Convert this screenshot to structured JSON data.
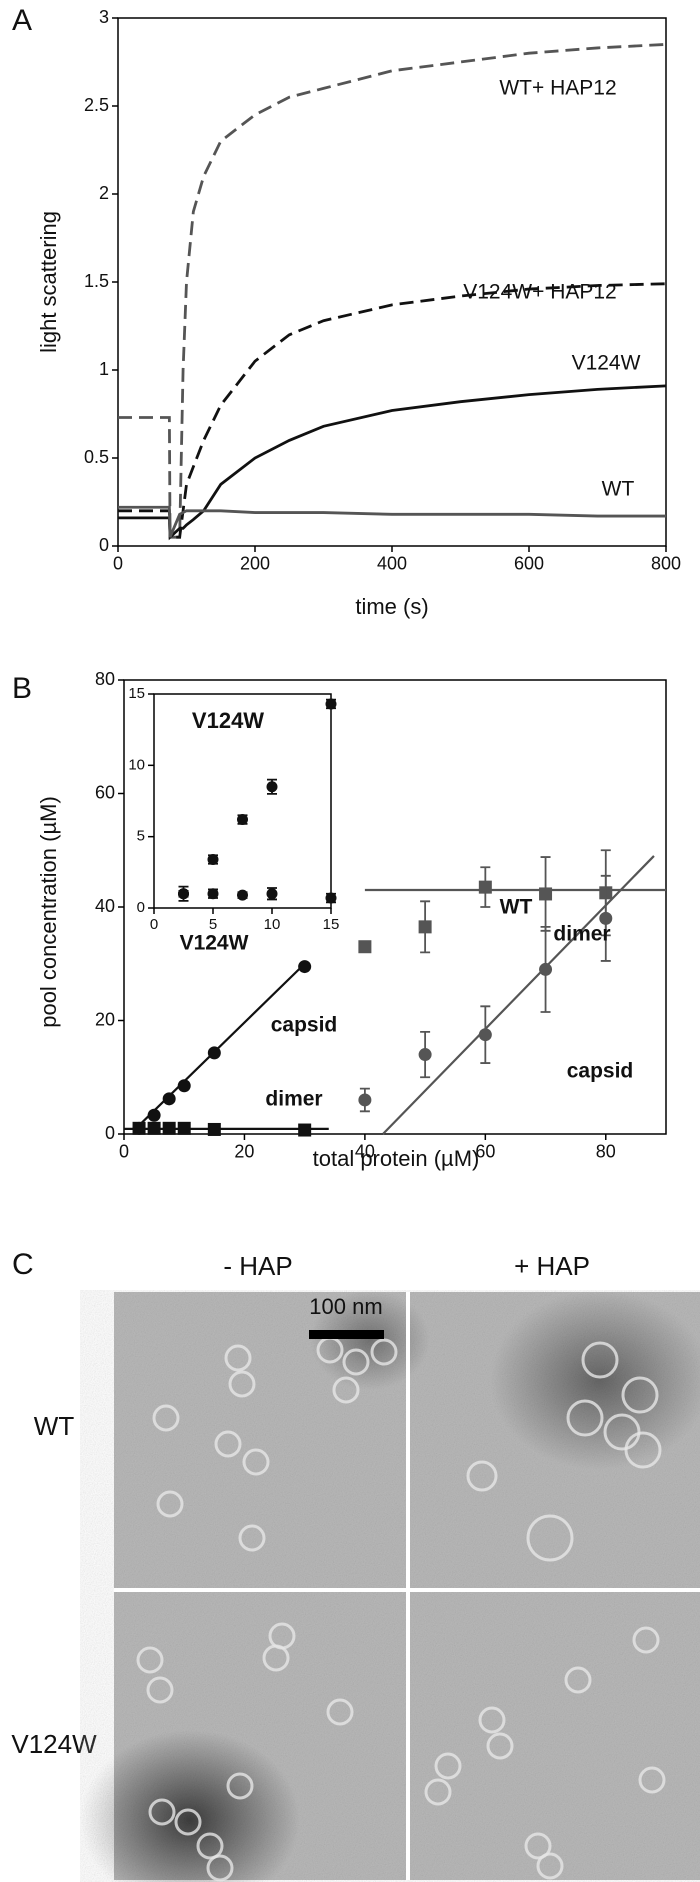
{
  "chart_data": [
    {
      "type": "line",
      "panel_label": "A",
      "x_label": "time (s)",
      "y_label": "light scattering",
      "xlim": [
        0,
        800
      ],
      "ylim": [
        0,
        3
      ],
      "xticks": [
        0,
        200,
        400,
        600,
        800
      ],
      "yticks": [
        0,
        0.5,
        1,
        1.5,
        2,
        2.5,
        3
      ],
      "x": [
        0,
        75,
        76,
        90,
        95,
        100,
        110,
        125,
        150,
        200,
        250,
        300,
        400,
        500,
        600,
        700,
        800
      ],
      "series": [
        {
          "name": "WT+ HAP12",
          "color": "#555555",
          "style": "dashed",
          "values": [
            0.73,
            0.73,
            0.05,
            0.05,
            1.0,
            1.5,
            1.9,
            2.1,
            2.3,
            2.45,
            2.55,
            2.6,
            2.7,
            2.75,
            2.8,
            2.83,
            2.85
          ]
        },
        {
          "name": "V124W+ HAP12",
          "color": "#111111",
          "style": "dashed",
          "values": [
            0.2,
            0.2,
            0.05,
            0.05,
            0.2,
            0.35,
            0.45,
            0.6,
            0.8,
            1.05,
            1.2,
            1.28,
            1.37,
            1.42,
            1.46,
            1.48,
            1.49
          ]
        },
        {
          "name": "V124W",
          "color": "#111111",
          "style": "solid",
          "values": [
            0.16,
            0.16,
            0.05,
            0.1,
            0.1,
            0.12,
            0.15,
            0.2,
            0.35,
            0.5,
            0.6,
            0.68,
            0.77,
            0.82,
            0.86,
            0.89,
            0.91
          ]
        },
        {
          "name": "WT",
          "color": "#555555",
          "style": "solid",
          "values": [
            0.22,
            0.22,
            0.05,
            0.18,
            0.19,
            0.2,
            0.2,
            0.2,
            0.2,
            0.19,
            0.19,
            0.19,
            0.18,
            0.18,
            0.18,
            0.17,
            0.17
          ]
        }
      ]
    },
    {
      "type": "scatter",
      "panel_label": "B",
      "x_label": "total protein (µM)",
      "y_label": "pool concentration (µM)",
      "xlim": [
        0,
        90
      ],
      "ylim": [
        0,
        80
      ],
      "xticks": [
        0,
        20,
        40,
        60,
        80
      ],
      "yticks": [
        0,
        20,
        40,
        60,
        80
      ],
      "fit_lines": [
        {
          "color": "#111111",
          "x": [
            2,
            30
          ],
          "y": [
            1,
            30
          ]
        },
        {
          "color": "#111111",
          "x": [
            0,
            34
          ],
          "y": [
            0.9,
            0.9
          ]
        },
        {
          "color": "#555555",
          "x": [
            40,
            90
          ],
          "y": [
            43,
            43
          ]
        },
        {
          "color": "#555555",
          "x": [
            43,
            88
          ],
          "y": [
            0,
            49
          ]
        }
      ],
      "series": [
        {
          "color": "#111111",
          "marker": "circle",
          "x": [
            2.5,
            5,
            7.5,
            10,
            15,
            30
          ],
          "values": [
            1,
            3.3,
            6.2,
            8.5,
            14.3,
            29.5
          ]
        },
        {
          "color": "#111111",
          "marker": "square",
          "x": [
            2.5,
            5,
            7.5,
            10,
            15,
            30
          ],
          "values": [
            1,
            1,
            1,
            1,
            0.8,
            0.7
          ]
        },
        {
          "color": "#555555",
          "marker": "square",
          "x": [
            40,
            50,
            60,
            70,
            80
          ],
          "values": [
            33,
            36.5,
            43.5,
            42.3,
            42.5
          ],
          "errors": [
            0,
            4.5,
            3.5,
            6.5,
            7.5
          ]
        },
        {
          "color": "#555555",
          "marker": "circle",
          "x": [
            40,
            50,
            60,
            70,
            80
          ],
          "values": [
            6,
            14,
            17.5,
            29,
            38
          ],
          "errors": [
            2,
            4,
            5,
            7.5,
            7.5
          ]
        }
      ],
      "annotations": [
        {
          "text": "V124W",
          "color": "#111111"
        },
        {
          "text": "capsid",
          "color": "#111111"
        },
        {
          "text": "dimer",
          "color": "#111111"
        },
        {
          "text": "WT",
          "color": "#555555"
        },
        {
          "text": "dimer",
          "color": "#555555"
        },
        {
          "text": "capsid",
          "color": "#555555"
        }
      ]
    },
    {
      "type": "scatter",
      "title": "V124W",
      "xlim": [
        0,
        15
      ],
      "ylim": [
        0,
        15
      ],
      "xticks": [
        0,
        5,
        10,
        15
      ],
      "yticks": [
        0,
        5,
        10,
        15
      ],
      "series": [
        {
          "color": "#111111",
          "marker": "circle",
          "x": [
            2.5,
            5,
            7.5,
            10,
            15
          ],
          "values": [
            1,
            3.4,
            6.2,
            8.5,
            14.3
          ],
          "errors": [
            0.2,
            0.3,
            0.3,
            0.5,
            0.3
          ]
        },
        {
          "color": "#111111",
          "marker": "circle",
          "x": [
            2.5,
            5,
            7.5,
            10,
            15
          ],
          "values": [
            1,
            1,
            0.9,
            1,
            0.7
          ],
          "errors": [
            0.5,
            0.3,
            0.2,
            0.4,
            0.3
          ]
        }
      ]
    }
  ],
  "micrographs": {
    "panel_label": "C",
    "columns": [
      "- HAP",
      "+ HAP"
    ],
    "rows": [
      "WT",
      "V124W"
    ],
    "scale_bar": "100 nm"
  }
}
